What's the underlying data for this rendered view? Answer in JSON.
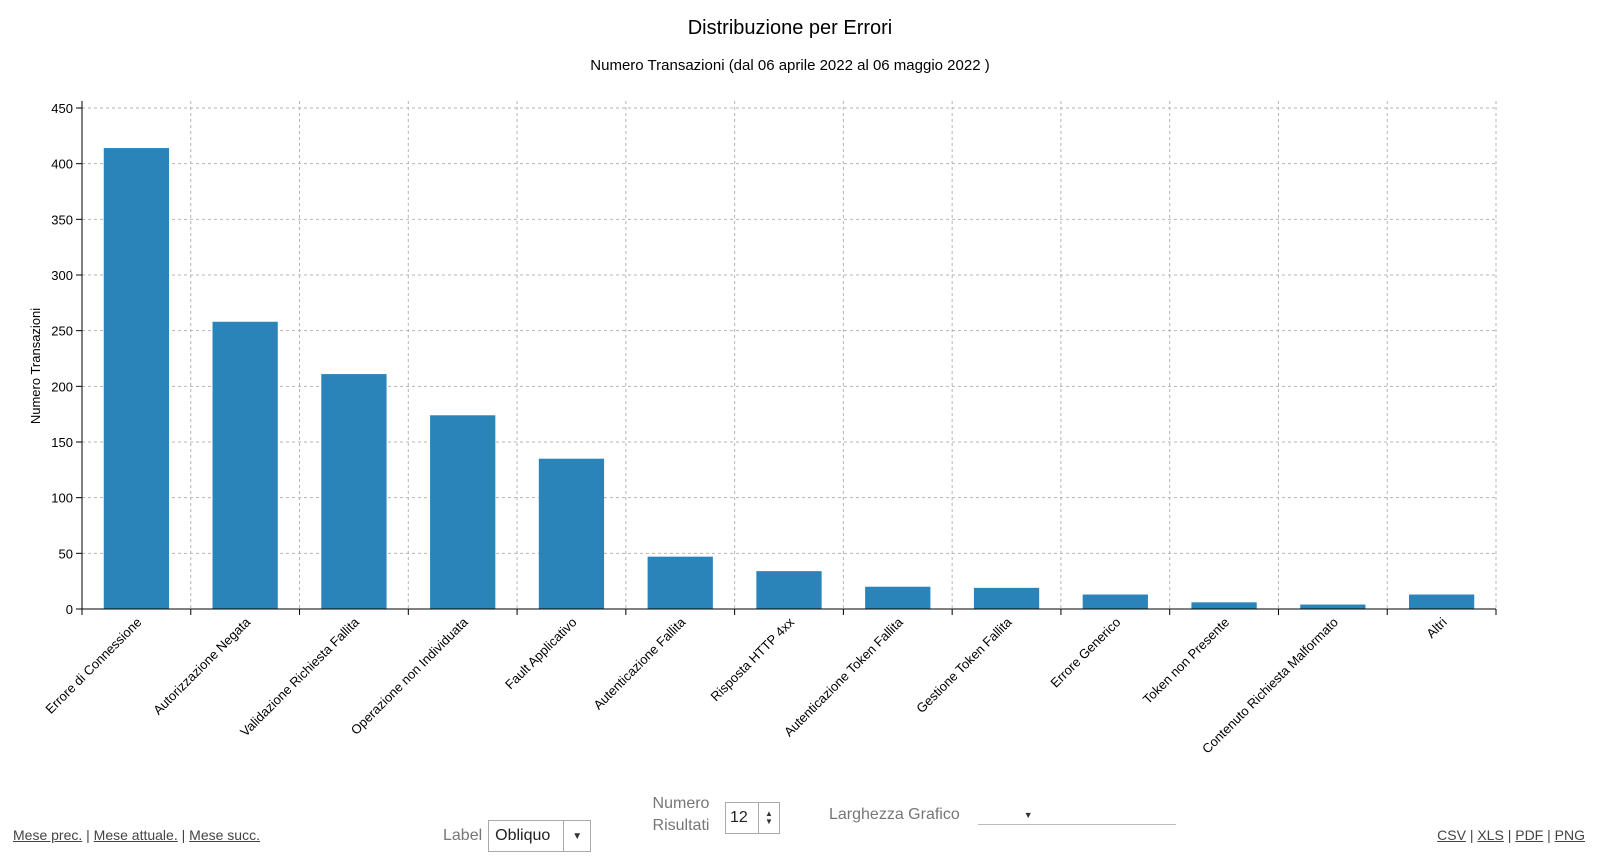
{
  "chart_data": {
    "type": "bar",
    "title": "Distribuzione per Errori",
    "subtitle": "Numero Transazioni (dal 06 aprile 2022 al 06 maggio 2022 )",
    "xlabel": "",
    "ylabel": "Numero Transazioni",
    "ylim": [
      0,
      450
    ],
    "yticks": [
      0,
      50,
      100,
      150,
      200,
      250,
      300,
      350,
      400,
      450
    ],
    "grid": true,
    "bar_color": "#2a84b9",
    "categories": [
      "Errore di Connessione",
      "Autorizzazione Negata",
      "Validazione Richiesta Fallita",
      "Operazione non Individuata",
      "Fault Applicativo",
      "Autenticazione Fallita",
      "Risposta HTTP 4xx",
      "Autenticazione Token Fallita",
      "Gestione Token Fallita",
      "Errore Generico",
      "Token non Presente",
      "Contenuto Richiesta Malformato",
      "Altri"
    ],
    "values": [
      414,
      258,
      211,
      174,
      135,
      47,
      34,
      20,
      19,
      13,
      6,
      4,
      13
    ]
  },
  "footer": {
    "nav": {
      "prev": "Mese prec.",
      "current": "Mese attuale.",
      "next": "Mese succ.",
      "separator": "|"
    },
    "label_control": {
      "label": "Label",
      "value": "Obliquo"
    },
    "results_control": {
      "label": "Numero Risultati",
      "value": "12"
    },
    "width_control": {
      "label": "Larghezza Grafico",
      "value": ""
    },
    "export": {
      "csv": "CSV",
      "xls": "XLS",
      "pdf": "PDF",
      "png": "PNG",
      "separator": "|"
    }
  }
}
